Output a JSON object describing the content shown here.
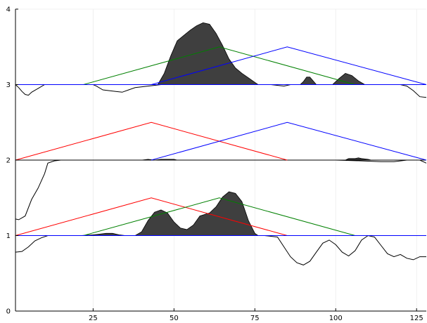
{
  "chart_data": {
    "type": "area",
    "title": "",
    "xlabel": "",
    "ylabel": "",
    "xlim": [
      1,
      128
    ],
    "ylim": [
      0,
      4
    ],
    "grid": true,
    "legend": "none",
    "x_ticks": [
      25,
      50,
      75,
      100,
      125
    ],
    "y_ticks": [
      0,
      1,
      2,
      3,
      4
    ],
    "colors": {
      "area_fill": "#3f3f3f",
      "curve": "#000000",
      "red": "#ff0000",
      "green": "#008000",
      "blue": "#0000ff",
      "grid": "#ececec",
      "axis": "#000000"
    },
    "rows": [
      {
        "baseline": 1,
        "curve": [
          [
            1,
            0.78
          ],
          [
            3,
            0.79
          ],
          [
            5,
            0.85
          ],
          [
            7,
            0.93
          ],
          [
            9,
            0.97
          ],
          [
            11,
            1.0
          ],
          [
            20,
            1.0
          ],
          [
            30,
            1.0
          ],
          [
            40,
            1.0
          ],
          [
            60,
            1.0
          ],
          [
            75,
            1.0
          ],
          [
            78,
            1.0
          ],
          [
            82,
            0.98
          ],
          [
            84,
            0.85
          ],
          [
            86,
            0.72
          ],
          [
            88,
            0.64
          ],
          [
            90,
            0.61
          ],
          [
            92,
            0.66
          ],
          [
            94,
            0.78
          ],
          [
            96,
            0.9
          ],
          [
            98,
            0.94
          ],
          [
            100,
            0.88
          ],
          [
            102,
            0.78
          ],
          [
            104,
            0.73
          ],
          [
            106,
            0.8
          ],
          [
            108,
            0.94
          ],
          [
            110,
            1.0
          ],
          [
            112,
            0.98
          ],
          [
            114,
            0.87
          ],
          [
            116,
            0.76
          ],
          [
            118,
            0.72
          ],
          [
            120,
            0.75
          ],
          [
            122,
            0.7
          ],
          [
            124,
            0.68
          ],
          [
            126,
            0.72
          ],
          [
            128,
            0.72
          ]
        ],
        "area": [
          [
            21,
            1.0
          ],
          [
            25,
            1.01
          ],
          [
            27,
            1.02
          ],
          [
            29,
            1.03
          ],
          [
            31,
            1.03
          ],
          [
            33,
            1.01
          ],
          [
            35,
            1.0
          ],
          [
            38,
            1.0
          ],
          [
            40,
            1.05
          ],
          [
            42,
            1.2
          ],
          [
            44,
            1.31
          ],
          [
            46,
            1.34
          ],
          [
            48,
            1.3
          ],
          [
            50,
            1.18
          ],
          [
            52,
            1.1
          ],
          [
            54,
            1.08
          ],
          [
            56,
            1.14
          ],
          [
            58,
            1.26
          ],
          [
            61,
            1.3
          ],
          [
            63,
            1.38
          ],
          [
            65,
            1.51
          ],
          [
            67,
            1.58
          ],
          [
            69,
            1.56
          ],
          [
            71,
            1.45
          ],
          [
            73,
            1.2
          ],
          [
            75,
            1.03
          ],
          [
            76,
            1.0
          ]
        ],
        "triangles": [
          {
            "color": "red",
            "start": 1,
            "peak": 43,
            "end": 85,
            "height": 0.5
          },
          {
            "color": "green",
            "start": 22,
            "peak": 64,
            "end": 106,
            "height": 0.5
          },
          {
            "color": "blue",
            "start": 1,
            "peak": 1,
            "end": 128,
            "height": 0.0
          }
        ]
      },
      {
        "baseline": 2,
        "curve": [
          [
            1,
            1.22
          ],
          [
            2,
            1.21
          ],
          [
            4,
            1.26
          ],
          [
            6,
            1.48
          ],
          [
            8,
            1.63
          ],
          [
            10,
            1.82
          ],
          [
            11,
            1.96
          ],
          [
            13,
            1.99
          ],
          [
            15,
            2.0
          ],
          [
            30,
            2.0
          ],
          [
            60,
            2.0
          ],
          [
            100,
            2.0
          ],
          [
            108,
            1.99
          ],
          [
            114,
            1.98
          ],
          [
            118,
            1.98
          ],
          [
            120,
            1.99
          ],
          [
            122,
            2.0
          ],
          [
            126,
            2.0
          ],
          [
            128,
            1.96
          ]
        ],
        "area": [
          [
            40,
            2.0
          ],
          [
            42,
            2.01
          ],
          [
            44,
            2.0
          ],
          [
            46,
            2.01
          ],
          [
            48,
            2.01
          ],
          [
            50,
            2.01
          ],
          [
            51,
            2.0
          ],
          [
            103,
            2.0
          ],
          [
            104,
            2.02
          ],
          [
            106,
            2.02
          ],
          [
            107,
            2.03
          ],
          [
            108,
            2.02
          ],
          [
            110,
            2.01
          ],
          [
            111,
            2.0
          ]
        ],
        "triangles": [
          {
            "color": "red",
            "start": 1,
            "peak": 43,
            "end": 85,
            "height": 0.5
          },
          {
            "color": "blue",
            "start": 43,
            "peak": 85,
            "end": 128,
            "height": 0.5
          }
        ]
      },
      {
        "baseline": 3,
        "curve": [
          [
            1,
            3.0
          ],
          [
            2,
            2.96
          ],
          [
            3,
            2.91
          ],
          [
            4,
            2.87
          ],
          [
            5,
            2.86
          ],
          [
            6,
            2.9
          ],
          [
            8,
            2.95
          ],
          [
            10,
            3.0
          ],
          [
            25,
            3.0
          ],
          [
            26,
            2.98
          ],
          [
            28,
            2.93
          ],
          [
            32,
            2.91
          ],
          [
            34,
            2.9
          ],
          [
            36,
            2.93
          ],
          [
            38,
            2.96
          ],
          [
            42,
            2.98
          ],
          [
            46,
            3.0
          ],
          [
            80,
            3.0
          ],
          [
            84,
            2.98
          ],
          [
            86,
            3.0
          ],
          [
            120,
            3.0
          ],
          [
            122,
            2.98
          ],
          [
            124,
            2.92
          ],
          [
            126,
            2.84
          ],
          [
            128,
            2.83
          ]
        ],
        "area": [
          [
            45,
            3.0
          ],
          [
            47,
            3.15
          ],
          [
            49,
            3.38
          ],
          [
            51,
            3.58
          ],
          [
            53,
            3.65
          ],
          [
            55,
            3.72
          ],
          [
            57,
            3.78
          ],
          [
            59,
            3.82
          ],
          [
            61,
            3.8
          ],
          [
            63,
            3.68
          ],
          [
            65,
            3.52
          ],
          [
            67,
            3.34
          ],
          [
            69,
            3.22
          ],
          [
            71,
            3.15
          ],
          [
            73,
            3.09
          ],
          [
            75,
            3.03
          ],
          [
            76,
            3.0
          ],
          [
            89,
            3.0
          ],
          [
            90,
            3.04
          ],
          [
            91,
            3.1
          ],
          [
            92,
            3.1
          ],
          [
            93,
            3.05
          ],
          [
            94,
            3.0
          ],
          [
            99,
            3.0
          ],
          [
            101,
            3.08
          ],
          [
            103,
            3.15
          ],
          [
            105,
            3.12
          ],
          [
            107,
            3.05
          ],
          [
            109,
            3.0
          ]
        ],
        "triangles": [
          {
            "color": "green",
            "start": 22,
            "peak": 64,
            "end": 106,
            "height": 0.5
          },
          {
            "color": "blue",
            "start": 43,
            "peak": 85,
            "end": 128,
            "height": 0.5
          },
          {
            "color": "blue",
            "start": 1,
            "peak": 1,
            "end": 128,
            "height": 0.0
          }
        ]
      }
    ]
  }
}
